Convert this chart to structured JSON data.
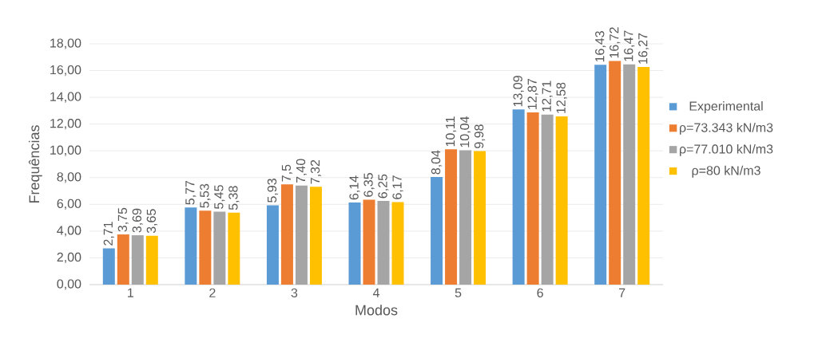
{
  "chart_data": {
    "type": "bar",
    "xlabel": "Modos",
    "ylabel": "Frequências",
    "categories": [
      "1",
      "2",
      "3",
      "4",
      "5",
      "6",
      "7"
    ],
    "series": [
      {
        "name": "Experimental",
        "color": "#5b9bd5",
        "values": [
          2.71,
          5.77,
          5.93,
          6.14,
          8.04,
          13.09,
          16.43
        ],
        "value_labels": [
          "2,71",
          "5,77",
          "5,93",
          "6,14",
          "8,04",
          "13,09",
          "16,43"
        ]
      },
      {
        "name": "ρ=73.343 kN/m3",
        "color": "#ed7d31",
        "values": [
          3.75,
          5.53,
          7.5,
          6.35,
          10.11,
          12.87,
          16.72
        ],
        "value_labels": [
          "3,75",
          "5,53",
          "7,5",
          "6,35",
          "10,11",
          "12,87",
          "16,72"
        ]
      },
      {
        "name": "ρ=77.010 kN/m3",
        "color": "#a5a5a5",
        "values": [
          3.69,
          5.45,
          7.4,
          6.25,
          10.04,
          12.71,
          16.47
        ],
        "value_labels": [
          "3,69",
          "5,45",
          "7,40",
          "6,25",
          "10,04",
          "12,71",
          "16,47"
        ]
      },
      {
        "name": "ρ=80 kN/m3",
        "color": "#ffc000",
        "values": [
          3.65,
          5.38,
          7.32,
          6.17,
          9.98,
          12.58,
          16.27
        ],
        "value_labels": [
          "3,65",
          "5,38",
          "7,32",
          "6,17",
          "9,98",
          "12,58",
          "16,27"
        ]
      }
    ],
    "ylim": [
      0,
      18
    ],
    "yticks": [
      {
        "value": 0,
        "label": "0,00"
      },
      {
        "value": 2,
        "label": "2,00"
      },
      {
        "value": 4,
        "label": "4,00"
      },
      {
        "value": 6,
        "label": "6,00"
      },
      {
        "value": 8,
        "label": "8,00"
      },
      {
        "value": 10,
        "label": "10,00"
      },
      {
        "value": 12,
        "label": "12,00"
      },
      {
        "value": 14,
        "label": "14,00"
      },
      {
        "value": 16,
        "label": "16,00"
      },
      {
        "value": 18,
        "label": "18,00"
      }
    ],
    "grid": "y",
    "legend": "right"
  }
}
